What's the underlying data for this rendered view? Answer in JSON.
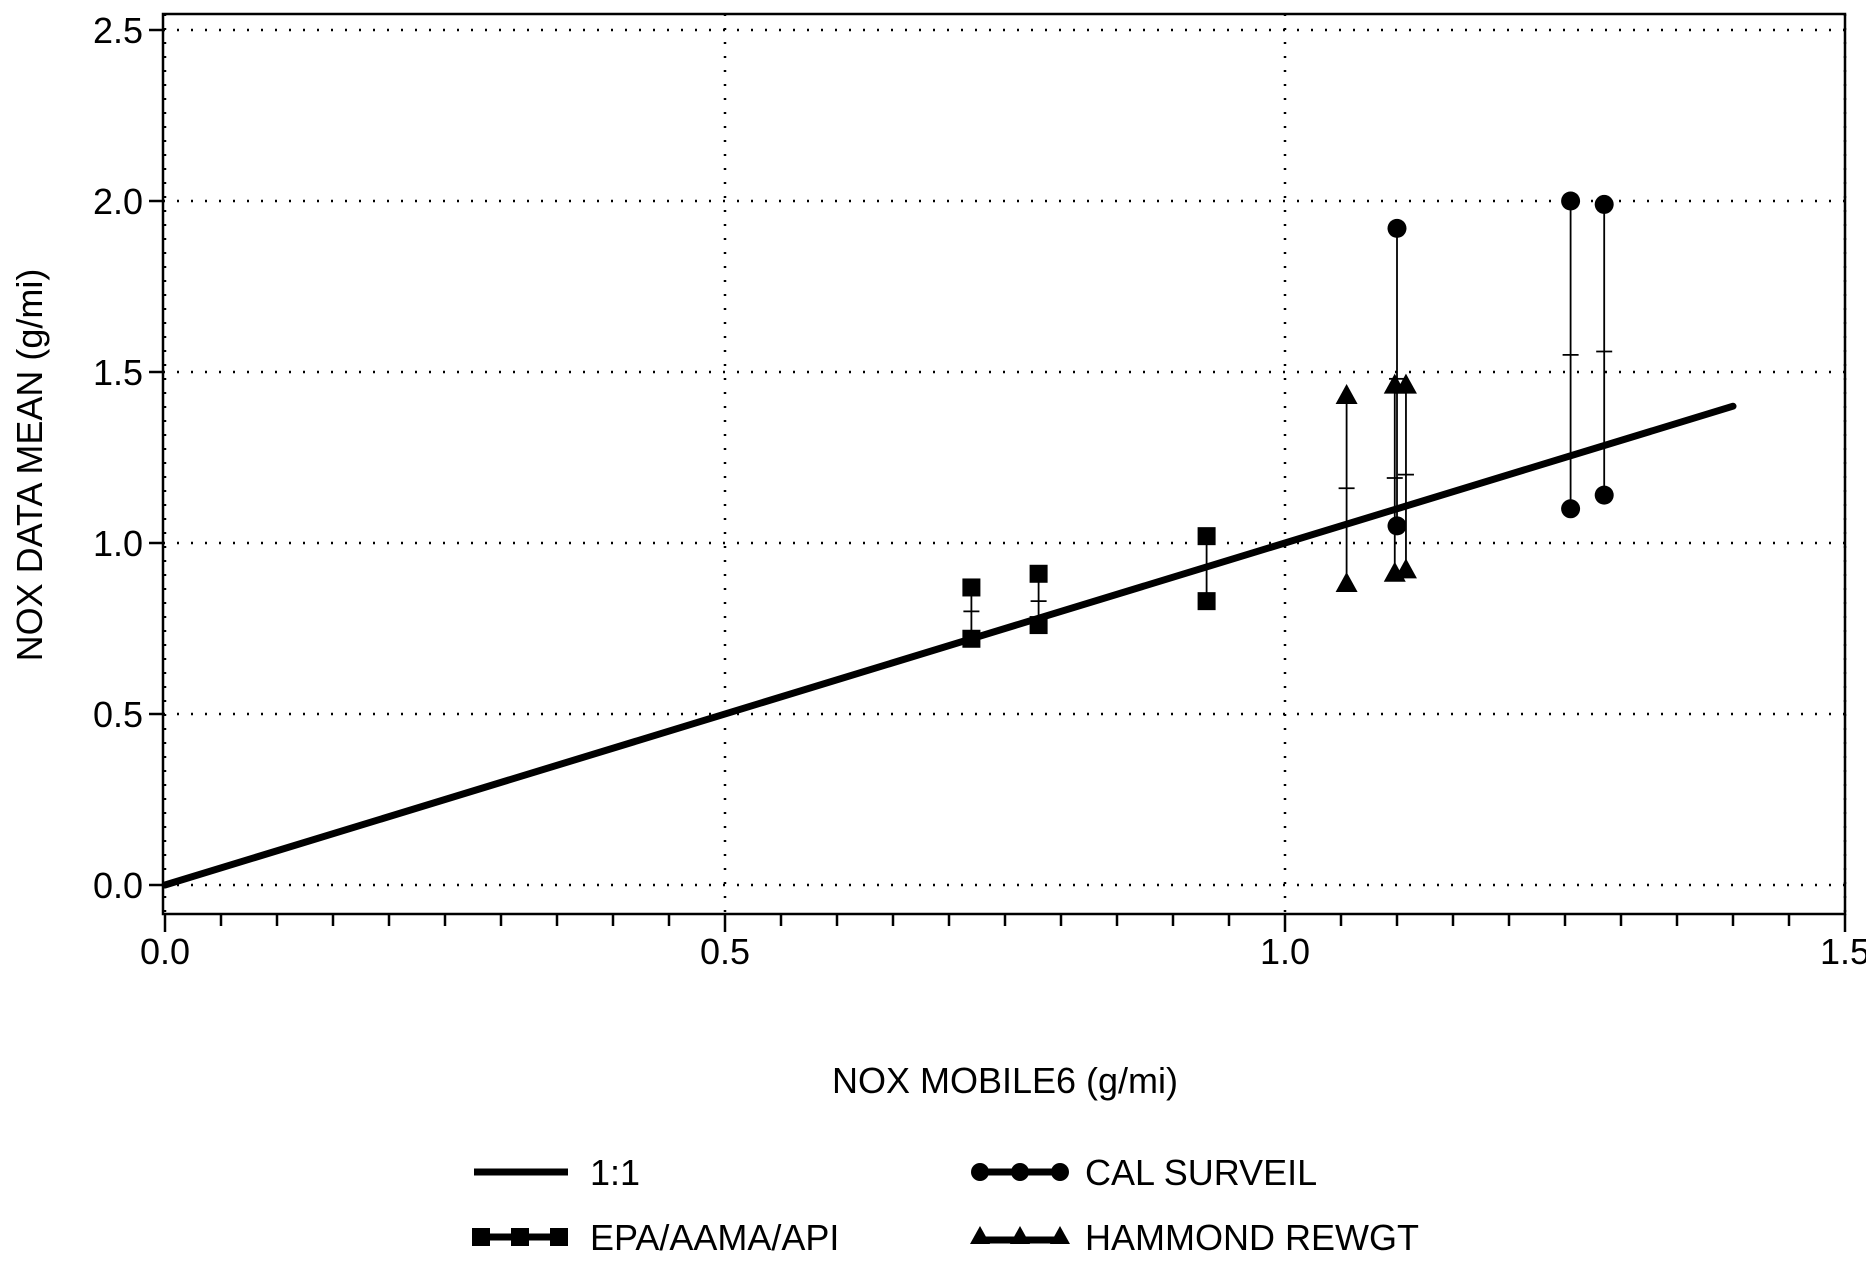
{
  "chart_data": {
    "type": "scatter",
    "xlabel": "NOX MOBILE6 (g/mi)",
    "ylabel": "NOX DATA MEAN (g/mi)",
    "xlim": [
      0,
      1.5
    ],
    "ylim": [
      0,
      2.5
    ],
    "x_ticks": [
      "0.0",
      "0.5",
      "1.0",
      "1.5"
    ],
    "y_ticks": [
      "0.0",
      "0.5",
      "1.0",
      "1.5",
      "2.0",
      "2.5"
    ],
    "grid": true,
    "legend_position": "bottom",
    "reference_line": {
      "name": "1:1",
      "x": [
        0,
        1.4
      ],
      "y": [
        0,
        1.4
      ]
    },
    "series": [
      {
        "name": "EPA/AAMA/API",
        "marker": "square",
        "ranges": [
          {
            "x": 0.72,
            "low": 0.72,
            "high": 0.87,
            "mean": 0.8
          },
          {
            "x": 0.78,
            "low": 0.76,
            "high": 0.91,
            "mean": 0.83
          },
          {
            "x": 0.93,
            "low": 0.83,
            "high": 1.02,
            "mean": 0.93
          }
        ]
      },
      {
        "name": "CAL SURVEIL",
        "marker": "circle",
        "ranges": [
          {
            "x": 1.1,
            "low": 1.05,
            "high": 1.92,
            "mean": 1.48
          },
          {
            "x": 1.255,
            "low": 1.1,
            "high": 2.0,
            "mean": 1.55
          },
          {
            "x": 1.285,
            "low": 1.14,
            "high": 1.99,
            "mean": 1.56
          }
        ]
      },
      {
        "name": "HAMMOND REWGT",
        "marker": "triangle",
        "ranges": [
          {
            "x": 1.055,
            "low": 0.88,
            "high": 1.43,
            "mean": 1.16
          },
          {
            "x": 1.098,
            "low": 0.91,
            "high": 1.46,
            "mean": 1.19
          },
          {
            "x": 1.108,
            "low": 0.92,
            "high": 1.46,
            "mean": 1.2
          }
        ]
      }
    ]
  },
  "legend": {
    "items": [
      {
        "label": "1:1",
        "marker": "line"
      },
      {
        "label": "CAL SURVEIL",
        "marker": "circle"
      },
      {
        "label": "EPA/AAMA/API",
        "marker": "square"
      },
      {
        "label": "HAMMOND REWGT",
        "marker": "triangle"
      }
    ]
  }
}
